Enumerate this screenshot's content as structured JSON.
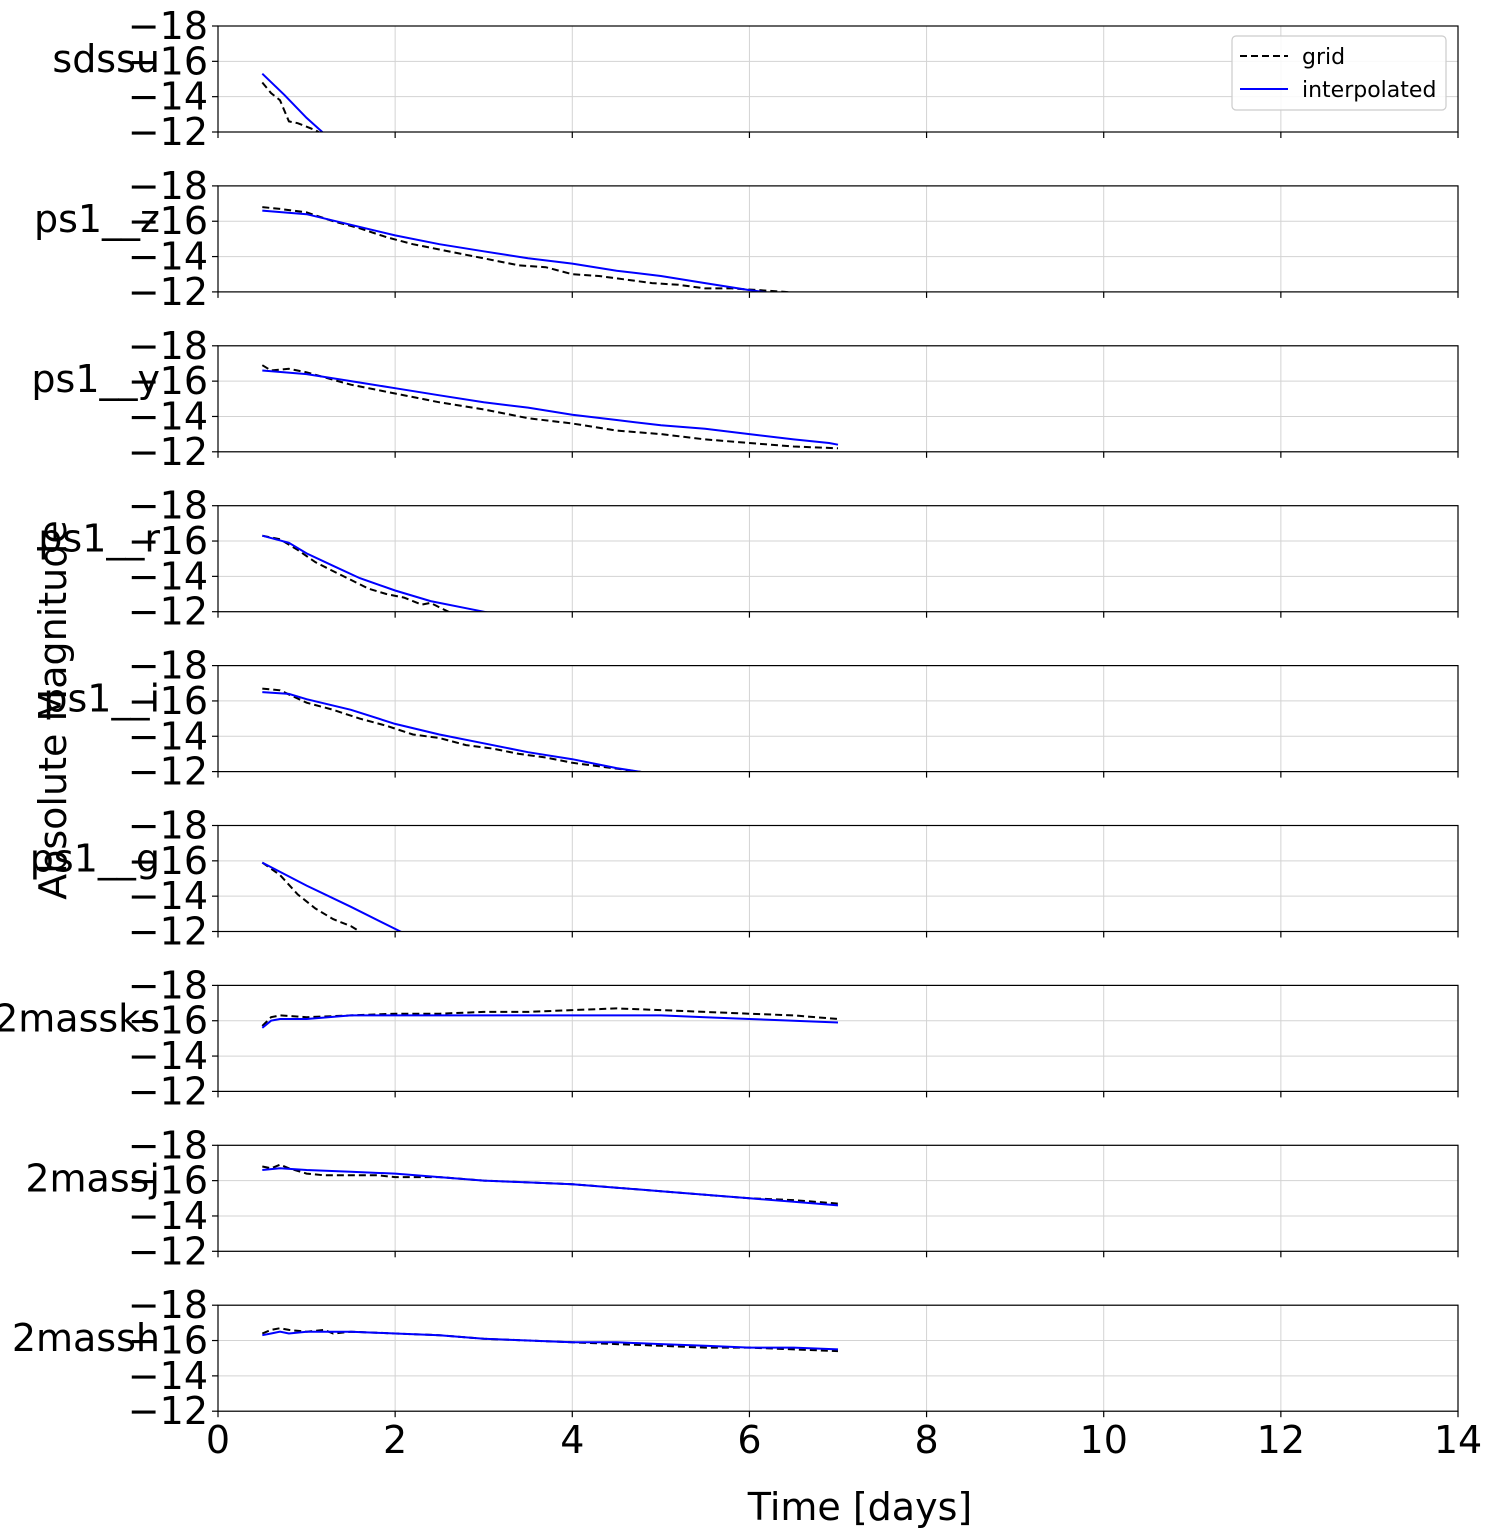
{
  "chart_data": {
    "type": "line",
    "xlabel": "Time [days]",
    "ylabel": "Absolute Magnitude",
    "xlim": [
      0,
      14
    ],
    "ylim": [
      -18,
      -12
    ],
    "xticks": [
      0,
      2,
      4,
      6,
      8,
      10,
      12,
      14
    ],
    "yticks": [
      -18,
      -16,
      -14,
      -12
    ],
    "x_tick_labels": [
      "0",
      "2",
      "4",
      "6",
      "8",
      "10",
      "12",
      "14"
    ],
    "y_tick_labels": [
      "−18",
      "−16",
      "−14",
      "−12"
    ],
    "grid": true,
    "legend": {
      "placement": "top-right",
      "entries": [
        {
          "label": "grid",
          "color": "#000000",
          "style": "dashed"
        },
        {
          "label": "interpolated",
          "color": "#0000ff",
          "style": "solid"
        }
      ]
    },
    "panels": [
      {
        "label": "sdssu",
        "series": [
          {
            "name": "grid",
            "x": [
              0.5,
              0.6,
              0.7,
              0.8,
              0.9,
              1.0,
              1.1,
              1.3
            ],
            "y": [
              -14.8,
              -14.2,
              -13.8,
              -12.6,
              -12.5,
              -12.3,
              -12.1,
              -11.5
            ]
          },
          {
            "name": "interpolated",
            "x": [
              0.5,
              0.75,
              1.0,
              1.2
            ],
            "y": [
              -15.3,
              -14.1,
              -12.8,
              -11.9
            ]
          }
        ]
      },
      {
        "label": "ps1__z",
        "series": [
          {
            "name": "grid",
            "x": [
              0.5,
              0.7,
              1.0,
              1.3,
              1.6,
              1.9,
              2.2,
              2.5,
              2.8,
              3.1,
              3.4,
              3.7,
              4.0,
              4.3,
              4.6,
              4.9,
              5.2,
              5.5,
              5.8,
              6.1,
              6.4,
              6.6
            ],
            "y": [
              -16.8,
              -16.7,
              -16.5,
              -16.0,
              -15.6,
              -15.1,
              -14.7,
              -14.4,
              -14.1,
              -13.8,
              -13.5,
              -13.4,
              -13.0,
              -12.9,
              -12.7,
              -12.5,
              -12.4,
              -12.2,
              -12.2,
              -12.1,
              -12.0,
              -11.9
            ]
          },
          {
            "name": "interpolated",
            "x": [
              0.5,
              1.0,
              1.5,
              2.0,
              2.5,
              3.0,
              3.5,
              4.0,
              4.5,
              5.0,
              5.5,
              6.0,
              6.3
            ],
            "y": [
              -16.6,
              -16.4,
              -15.8,
              -15.2,
              -14.7,
              -14.3,
              -13.9,
              -13.6,
              -13.2,
              -12.9,
              -12.5,
              -12.1,
              -11.9
            ]
          }
        ]
      },
      {
        "label": "ps1__y",
        "series": [
          {
            "name": "grid",
            "x": [
              0.5,
              0.6,
              0.8,
              1.0,
              1.5,
              2.0,
              2.5,
              3.0,
              3.5,
              4.0,
              4.5,
              5.0,
              5.5,
              6.0,
              6.5,
              7.0
            ],
            "y": [
              -16.9,
              -16.6,
              -16.7,
              -16.5,
              -15.8,
              -15.3,
              -14.8,
              -14.4,
              -13.9,
              -13.6,
              -13.2,
              -13.0,
              -12.7,
              -12.5,
              -12.3,
              -12.2
            ]
          },
          {
            "name": "interpolated",
            "x": [
              0.5,
              1.0,
              1.5,
              2.0,
              2.5,
              3.0,
              3.5,
              4.0,
              4.5,
              5.0,
              5.5,
              6.0,
              6.5,
              6.9,
              7.0
            ],
            "y": [
              -16.6,
              -16.4,
              -16.0,
              -15.6,
              -15.2,
              -14.8,
              -14.5,
              -14.1,
              -13.8,
              -13.5,
              -13.3,
              -13.0,
              -12.7,
              -12.5,
              -12.4
            ]
          }
        ]
      },
      {
        "label": "ps1__r",
        "series": [
          {
            "name": "grid",
            "x": [
              0.5,
              0.7,
              0.9,
              1.1,
              1.3,
              1.5,
              1.7,
              1.9,
              2.1,
              2.3,
              2.4,
              2.6,
              2.8
            ],
            "y": [
              -16.3,
              -16.1,
              -15.5,
              -14.8,
              -14.3,
              -13.8,
              -13.3,
              -13.0,
              -12.8,
              -12.4,
              -12.5,
              -12.0,
              -11.6
            ]
          },
          {
            "name": "interpolated",
            "x": [
              0.5,
              0.8,
              1.0,
              1.3,
              1.6,
              2.0,
              2.4,
              2.8,
              3.1
            ],
            "y": [
              -16.3,
              -15.9,
              -15.3,
              -14.6,
              -13.9,
              -13.2,
              -12.6,
              -12.2,
              -11.9
            ]
          }
        ]
      },
      {
        "label": "ps1__i",
        "series": [
          {
            "name": "grid",
            "x": [
              0.5,
              0.7,
              1.0,
              1.3,
              1.6,
              1.9,
              2.2,
              2.5,
              2.8,
              3.1,
              3.4,
              3.7,
              4.0,
              4.3,
              4.6,
              4.9,
              5.2
            ],
            "y": [
              -16.7,
              -16.6,
              -15.9,
              -15.5,
              -15.0,
              -14.6,
              -14.1,
              -13.9,
              -13.5,
              -13.3,
              -13.0,
              -12.8,
              -12.5,
              -12.3,
              -12.1,
              -11.9,
              -11.7
            ]
          },
          {
            "name": "interpolated",
            "x": [
              0.5,
              0.8,
              1.0,
              1.5,
              2.0,
              2.5,
              3.0,
              3.5,
              4.0,
              4.5,
              5.0
            ],
            "y": [
              -16.5,
              -16.4,
              -16.1,
              -15.5,
              -14.7,
              -14.1,
              -13.6,
              -13.1,
              -12.7,
              -12.2,
              -11.8
            ]
          }
        ]
      },
      {
        "label": "ps1__g",
        "series": [
          {
            "name": "grid",
            "x": [
              0.5,
              0.7,
              0.9,
              1.1,
              1.3,
              1.5,
              1.7
            ],
            "y": [
              -15.9,
              -15.2,
              -14.1,
              -13.3,
              -12.7,
              -12.3,
              -11.7
            ]
          },
          {
            "name": "interpolated",
            "x": [
              0.5,
              1.0,
              1.5,
              2.1
            ],
            "y": [
              -15.9,
              -14.6,
              -13.4,
              -11.9
            ]
          }
        ]
      },
      {
        "label": "2massks",
        "series": [
          {
            "name": "grid",
            "x": [
              0.5,
              0.6,
              0.7,
              1.0,
              1.5,
              2.0,
              2.5,
              3.0,
              3.5,
              4.0,
              4.5,
              5.0,
              5.5,
              6.0,
              6.5,
              7.0
            ],
            "y": [
              -15.7,
              -16.2,
              -16.3,
              -16.2,
              -16.3,
              -16.4,
              -16.4,
              -16.5,
              -16.5,
              -16.6,
              -16.7,
              -16.6,
              -16.5,
              -16.4,
              -16.3,
              -16.1
            ]
          },
          {
            "name": "interpolated",
            "x": [
              0.5,
              0.6,
              0.7,
              1.0,
              1.5,
              2.0,
              2.5,
              3.0,
              3.5,
              4.0,
              4.5,
              5.0,
              5.5,
              6.0,
              6.5,
              7.0
            ],
            "y": [
              -15.6,
              -16.0,
              -16.1,
              -16.1,
              -16.3,
              -16.3,
              -16.3,
              -16.3,
              -16.3,
              -16.3,
              -16.3,
              -16.3,
              -16.2,
              -16.1,
              -16.0,
              -15.9
            ]
          }
        ]
      },
      {
        "label": "2massj",
        "series": [
          {
            "name": "grid",
            "x": [
              0.5,
              0.6,
              0.7,
              0.8,
              1.0,
              1.2,
              1.5,
              1.8,
              2.0,
              2.5,
              3.0,
              3.5,
              4.0,
              4.5,
              5.0,
              5.5,
              6.0,
              6.5,
              7.0
            ],
            "y": [
              -16.8,
              -16.7,
              -16.9,
              -16.7,
              -16.4,
              -16.3,
              -16.3,
              -16.3,
              -16.2,
              -16.2,
              -16.0,
              -15.9,
              -15.8,
              -15.6,
              -15.4,
              -15.2,
              -15.0,
              -14.9,
              -14.7
            ]
          },
          {
            "name": "interpolated",
            "x": [
              0.5,
              0.7,
              1.0,
              1.5,
              2.0,
              2.5,
              3.0,
              3.5,
              4.0,
              4.5,
              5.0,
              5.5,
              6.0,
              6.5,
              7.0
            ],
            "y": [
              -16.6,
              -16.7,
              -16.6,
              -16.5,
              -16.4,
              -16.2,
              -16.0,
              -15.9,
              -15.8,
              -15.6,
              -15.4,
              -15.2,
              -15.0,
              -14.8,
              -14.6
            ]
          }
        ]
      },
      {
        "label": "2massh",
        "series": [
          {
            "name": "grid",
            "x": [
              0.5,
              0.6,
              0.7,
              0.8,
              1.0,
              1.2,
              1.3,
              1.5,
              2.0,
              2.5,
              3.0,
              3.5,
              4.0,
              4.5,
              5.0,
              5.5,
              6.0,
              6.5,
              7.0
            ],
            "y": [
              -16.4,
              -16.6,
              -16.7,
              -16.6,
              -16.5,
              -16.6,
              -16.4,
              -16.5,
              -16.4,
              -16.3,
              -16.1,
              -16.0,
              -15.9,
              -15.8,
              -15.7,
              -15.6,
              -15.6,
              -15.5,
              -15.4
            ]
          },
          {
            "name": "interpolated",
            "x": [
              0.5,
              0.6,
              0.7,
              0.8,
              1.0,
              1.2,
              1.5,
              2.0,
              2.5,
              3.0,
              3.5,
              4.0,
              4.5,
              5.0,
              5.5,
              6.0,
              6.5,
              7.0
            ],
            "y": [
              -16.3,
              -16.4,
              -16.5,
              -16.4,
              -16.5,
              -16.5,
              -16.5,
              -16.4,
              -16.3,
              -16.1,
              -16.0,
              -15.9,
              -15.9,
              -15.8,
              -15.7,
              -15.6,
              -15.6,
              -15.5
            ]
          }
        ]
      }
    ]
  }
}
